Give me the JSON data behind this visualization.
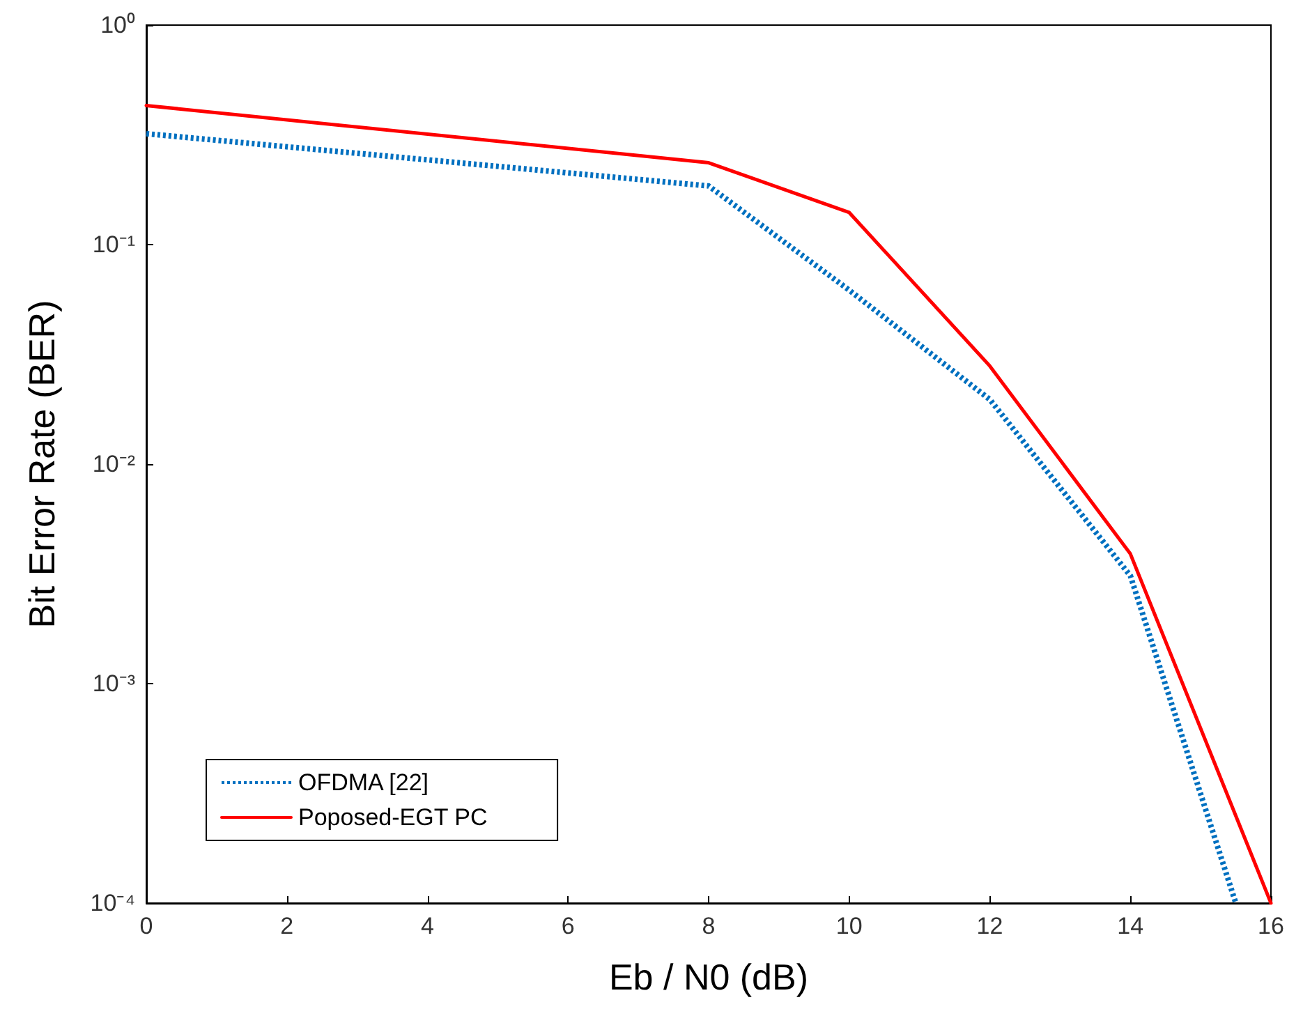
{
  "chart_data": {
    "type": "line",
    "xlabel": "Eb / N0 (dB)",
    "ylabel": "Bit Error Rate (BER)",
    "series": [
      {
        "name": "OFDMA [22]",
        "color": "#0070c0",
        "line_style": "dotted",
        "x": [
          0,
          8,
          10,
          12,
          14,
          15.5
        ],
        "values": [
          0.32,
          0.185,
          0.062,
          0.0197,
          0.0031,
          0.0001
        ]
      },
      {
        "name": "Poposed-EGT PC",
        "color": "#ff0000",
        "line_style": "solid",
        "x": [
          0,
          8,
          10,
          12,
          14,
          16
        ],
        "values": [
          0.43,
          0.236,
          0.14,
          0.028,
          0.0039,
          0.0001
        ]
      }
    ],
    "log": "y",
    "xlim": [
      0,
      16
    ],
    "xticks": [
      0,
      2,
      4,
      6,
      8,
      10,
      12,
      14,
      16
    ],
    "ylim": [
      0.0001,
      1
    ],
    "yticks": [
      {
        "value": 1,
        "label": "10⁰"
      },
      {
        "value": 0.1,
        "label": "10⁻¹"
      },
      {
        "value": 0.01,
        "label": "10⁻²"
      },
      {
        "value": 0.001,
        "label": "10⁻³"
      },
      {
        "value": 0.0001,
        "label": "10⁻⁴"
      }
    ],
    "grid": false,
    "legend": "bottom left",
    "marker": "none"
  }
}
